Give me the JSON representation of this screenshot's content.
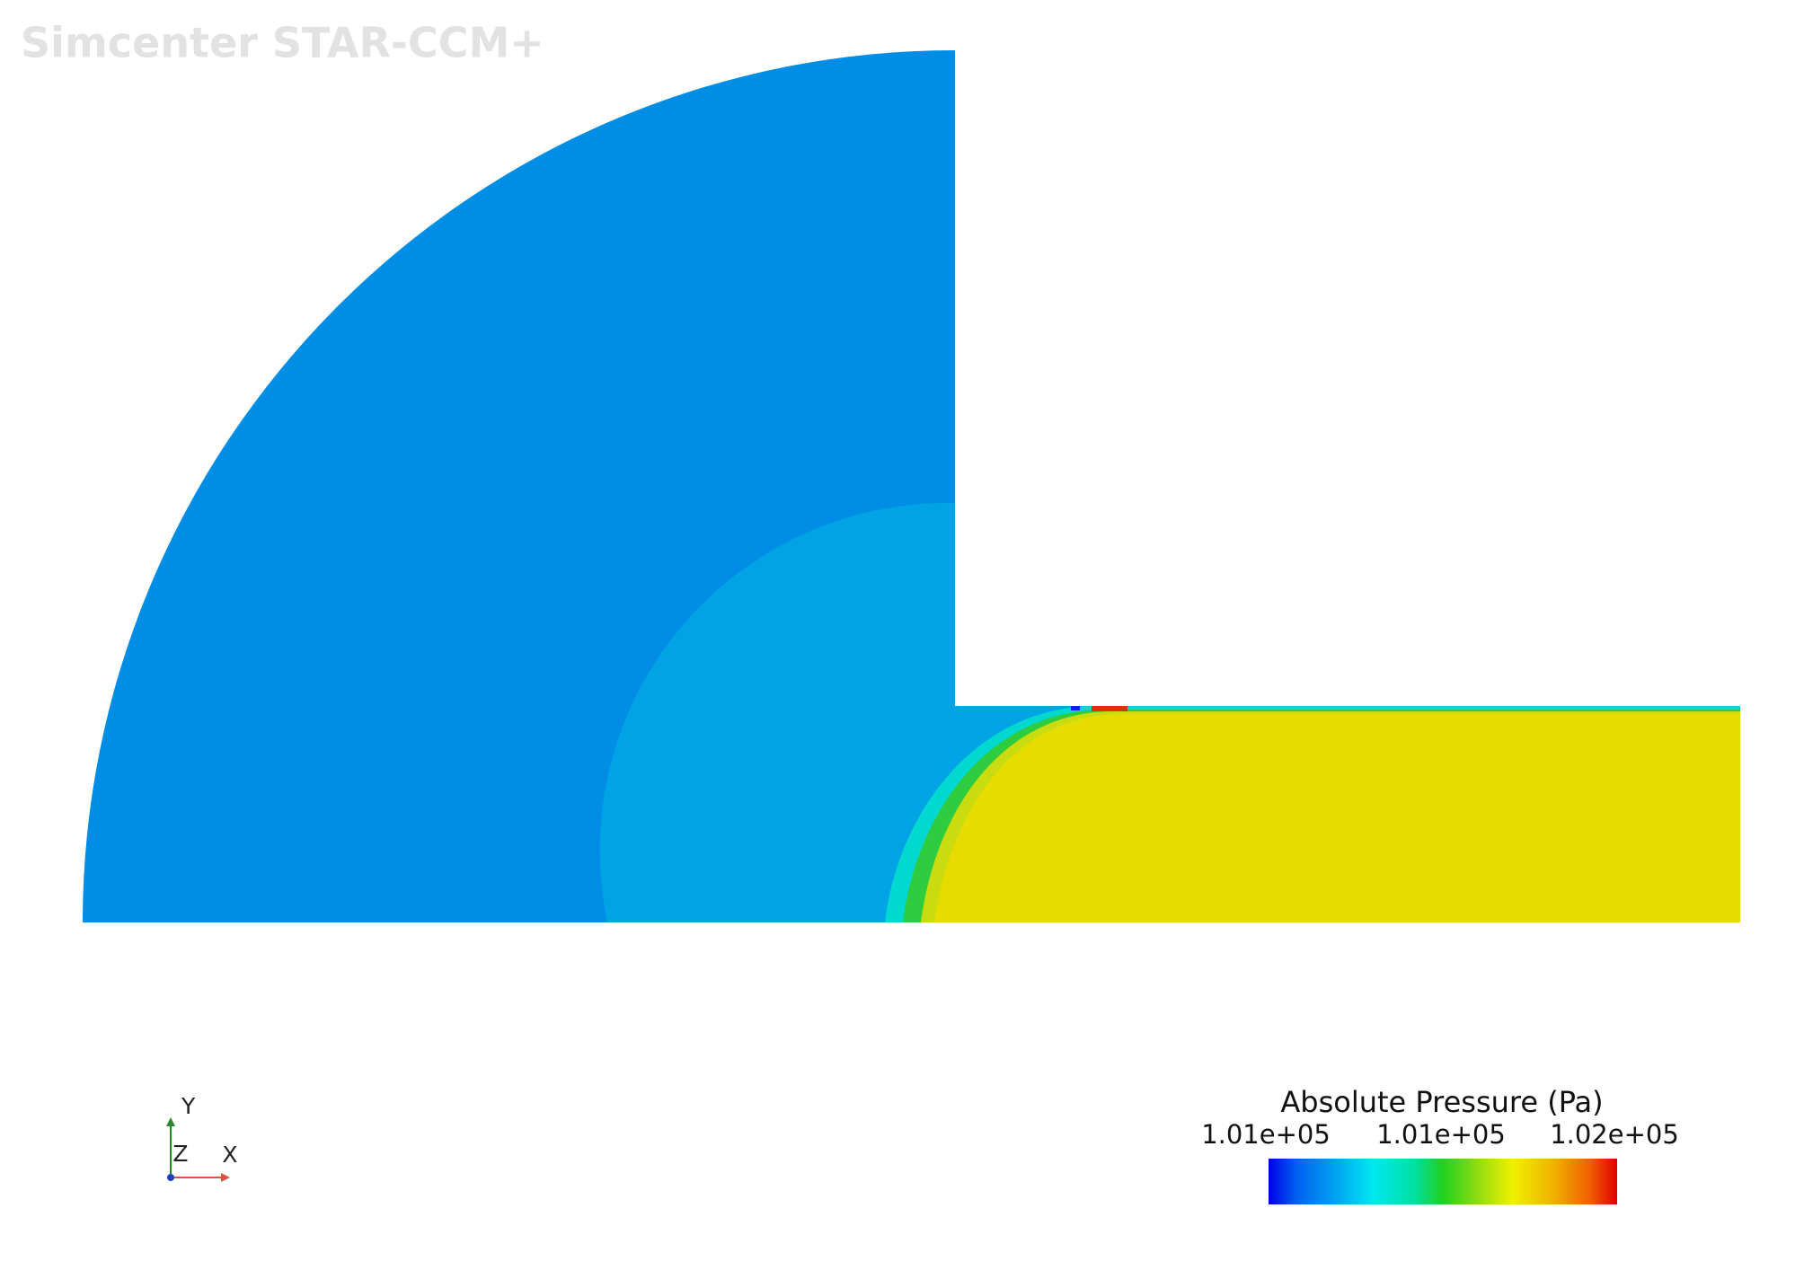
{
  "watermark": "Simcenter STAR-CCM+",
  "legend": {
    "title": "Absolute Pressure (Pa)",
    "labels": [
      "1.01e+05",
      "1.01e+05",
      "1.02e+05"
    ]
  },
  "triad": {
    "y": "Y",
    "z": "Z",
    "x": "X"
  }
}
